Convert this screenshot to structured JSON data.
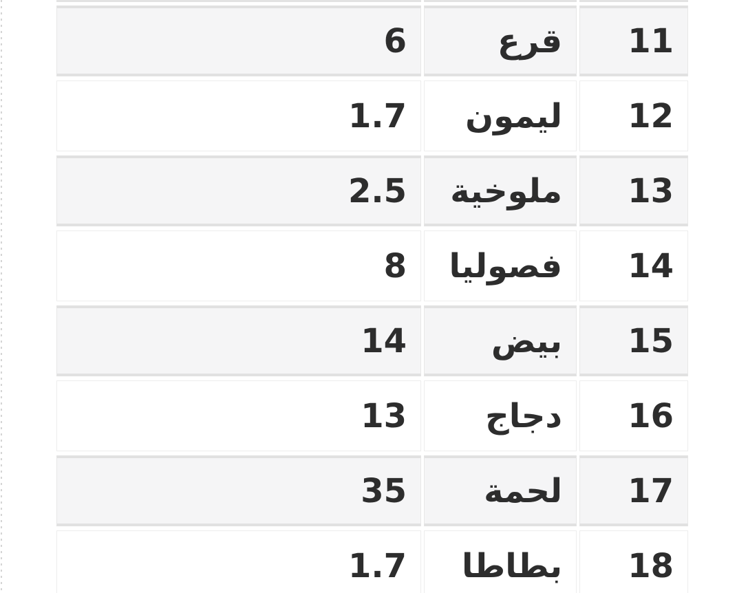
{
  "table": {
    "direction": "rtl",
    "visible_row_range": "11-18",
    "columns": [
      {
        "key": "no",
        "role": "row-number"
      },
      {
        "key": "name",
        "role": "item-name"
      },
      {
        "key": "value",
        "role": "item-value"
      }
    ],
    "rows": [
      {
        "no": "11",
        "name": "قرع",
        "value": "6"
      },
      {
        "no": "12",
        "name": "ليمون",
        "value": "1.7"
      },
      {
        "no": "13",
        "name": "ملوخية",
        "value": "2.5"
      },
      {
        "no": "14",
        "name": "فصوليا",
        "value": "8"
      },
      {
        "no": "15",
        "name": "بيض",
        "value": "14"
      },
      {
        "no": "16",
        "name": "دجاج",
        "value": "13"
      },
      {
        "no": "17",
        "name": "لحمة",
        "value": "35"
      },
      {
        "no": "18",
        "name": "بطاطا",
        "value": "1.7"
      }
    ]
  },
  "colors": {
    "row_shade": "#f5f5f6",
    "row_shade_edge": "#e1e1e1",
    "cell_border": "#ededed",
    "text": "#2d2d2d"
  }
}
